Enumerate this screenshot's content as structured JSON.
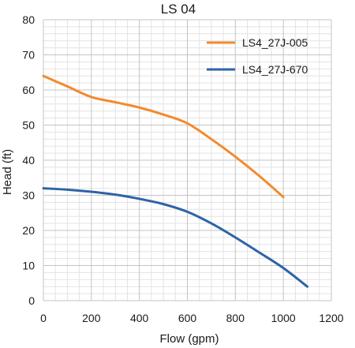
{
  "chart_data": {
    "type": "line",
    "title": "LS 04",
    "xlabel": "Flow (gpm)",
    "ylabel": "Head (ft)",
    "xlim": [
      0,
      1200
    ],
    "ylim": [
      0,
      80
    ],
    "x_ticks": [
      0,
      200,
      400,
      600,
      800,
      1000,
      1200
    ],
    "y_ticks": [
      0,
      10,
      20,
      30,
      40,
      50,
      60,
      70,
      80
    ],
    "x_tick_labels": [
      "0",
      "200",
      "400",
      "600",
      "800",
      "1000",
      "1200"
    ],
    "y_tick_labels": [
      "0",
      "10",
      "20",
      "30",
      "40",
      "50",
      "60",
      "70",
      "80"
    ],
    "grid": true,
    "minor_grid": true,
    "legend_position": "top-right",
    "series": [
      {
        "name": "LS4_27J-005",
        "color": "#F28A2E",
        "x": [
          0,
          100,
          200,
          300,
          400,
          500,
          600,
          700,
          800,
          900,
          1000
        ],
        "y": [
          64,
          61,
          58,
          56.5,
          55,
          53,
          50.5,
          46,
          41,
          35.5,
          29.5
        ]
      },
      {
        "name": "LS4_27J-670",
        "color": "#2E63A8",
        "x": [
          0,
          100,
          200,
          300,
          400,
          500,
          600,
          700,
          800,
          900,
          1000,
          1100
        ],
        "y": [
          32,
          31.6,
          31,
          30.2,
          29,
          27.5,
          25.3,
          22,
          18,
          13.7,
          9.3,
          4
        ]
      }
    ]
  }
}
